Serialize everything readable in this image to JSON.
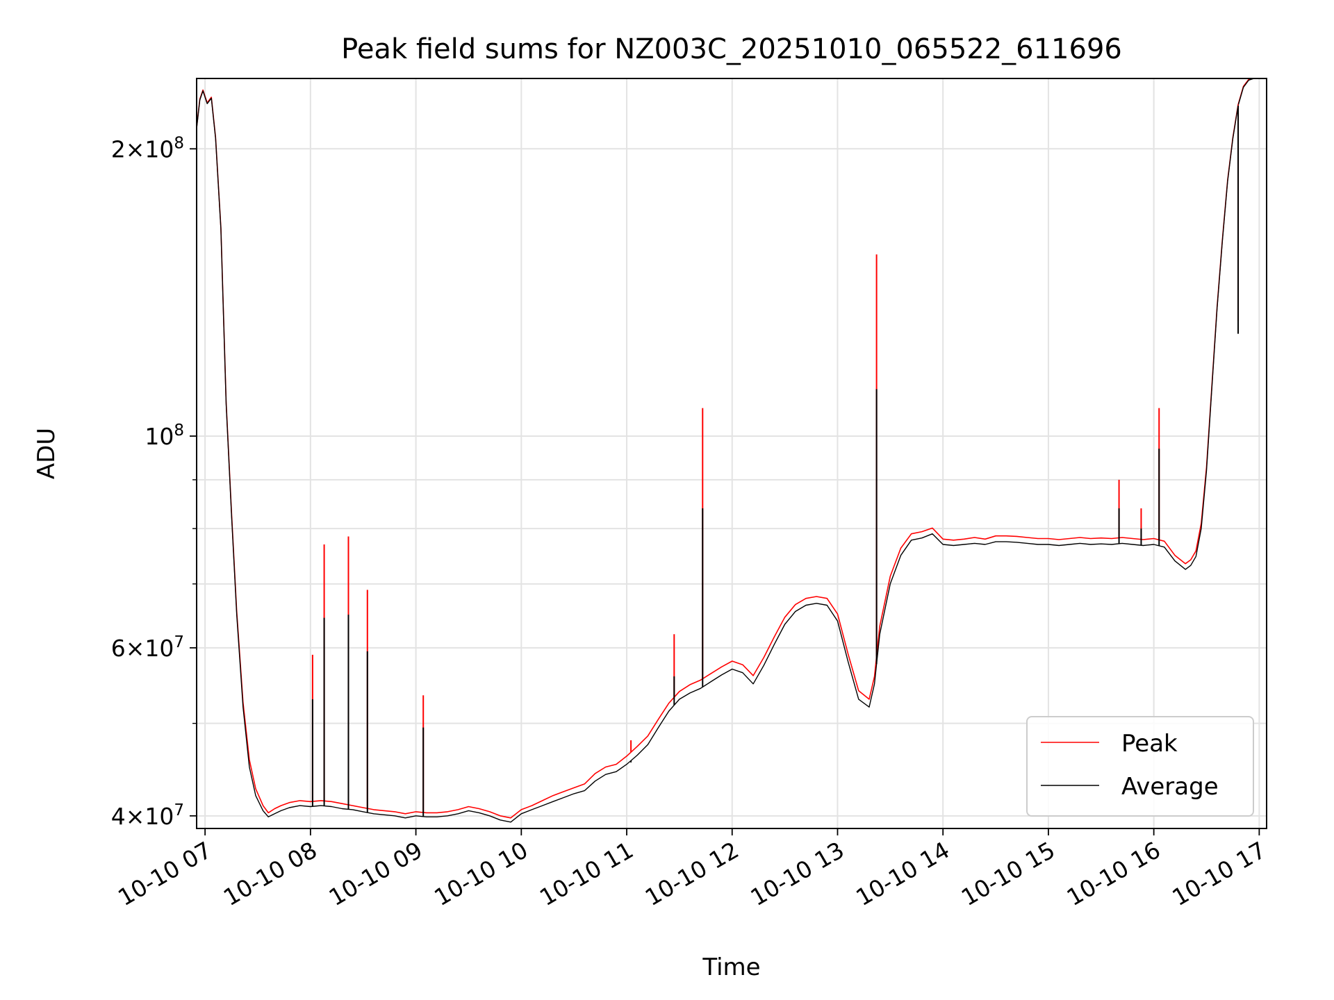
{
  "chart_data": {
    "type": "line",
    "title": "Peak field sums for NZ003C_20251010_065522_611696",
    "xlabel": "Time",
    "ylabel": "ADU",
    "yscale": "log",
    "xlim": [
      6.92,
      17.07
    ],
    "ylim": [
      38800000,
      237000000
    ],
    "grid": true,
    "legend_position": "lower-right",
    "x_unit": "hour of 2025-10-10",
    "x_ticks": [
      {
        "value": 7,
        "label": "10-10 07"
      },
      {
        "value": 8,
        "label": "10-10 08"
      },
      {
        "value": 9,
        "label": "10-10 09"
      },
      {
        "value": 10,
        "label": "10-10 10"
      },
      {
        "value": 11,
        "label": "10-10 11"
      },
      {
        "value": 12,
        "label": "10-10 12"
      },
      {
        "value": 13,
        "label": "10-10 13"
      },
      {
        "value": 14,
        "label": "10-10 14"
      },
      {
        "value": 15,
        "label": "10-10 15"
      },
      {
        "value": 16,
        "label": "10-10 16"
      },
      {
        "value": 17,
        "label": "10-10 17"
      }
    ],
    "y_major_ticks": [
      {
        "value": 40000000,
        "mantissa": "4",
        "times": "×",
        "base": "10",
        "exp": "7"
      },
      {
        "value": 60000000,
        "mantissa": "6",
        "times": "×",
        "base": "10",
        "exp": "7"
      },
      {
        "value": 100000000,
        "mantissa": "",
        "times": "",
        "base": "10",
        "exp": "8"
      },
      {
        "value": 200000000,
        "mantissa": "2",
        "times": "×",
        "base": "10",
        "exp": "8"
      }
    ],
    "y_minor_ticks": [
      50000000,
      70000000,
      80000000,
      90000000
    ],
    "series": [
      {
        "name": "Average",
        "color": "#000000",
        "x": [
          6.92,
          6.95,
          6.98,
          7.02,
          7.06,
          7.1,
          7.15,
          7.2,
          7.25,
          7.3,
          7.36,
          7.42,
          7.48,
          7.55,
          7.6,
          7.66,
          7.72,
          7.8,
          7.9,
          8.0,
          8.1,
          8.2,
          8.3,
          8.4,
          8.5,
          8.6,
          8.7,
          8.8,
          8.9,
          9.0,
          9.1,
          9.2,
          9.3,
          9.4,
          9.5,
          9.6,
          9.7,
          9.8,
          9.9,
          10.0,
          10.1,
          10.2,
          10.3,
          10.4,
          10.5,
          10.6,
          10.7,
          10.8,
          10.9,
          11.0,
          11.1,
          11.2,
          11.3,
          11.4,
          11.5,
          11.6,
          11.7,
          11.8,
          11.9,
          12.0,
          12.1,
          12.2,
          12.3,
          12.4,
          12.5,
          12.6,
          12.7,
          12.8,
          12.9,
          13.0,
          13.1,
          13.2,
          13.3,
          13.35,
          13.4,
          13.5,
          13.6,
          13.7,
          13.8,
          13.9,
          14.0,
          14.1,
          14.2,
          14.3,
          14.4,
          14.5,
          14.6,
          14.7,
          14.8,
          14.9,
          15.0,
          15.1,
          15.2,
          15.3,
          15.4,
          15.5,
          15.6,
          15.7,
          15.8,
          15.9,
          16.0,
          16.1,
          16.2,
          16.3,
          16.35,
          16.4,
          16.45,
          16.5,
          16.55,
          16.6,
          16.65,
          16.7,
          16.75,
          16.8,
          16.85,
          16.9,
          16.95,
          17.0,
          17.04,
          17.07
        ],
        "values": [
          210000000,
          225000000,
          230000000,
          223000000,
          226000000,
          205000000,
          165000000,
          108000000,
          83000000,
          65000000,
          52000000,
          45000000,
          42000000,
          40500000,
          39900000,
          40200000,
          40500000,
          40800000,
          41000000,
          40900000,
          41000000,
          40900000,
          40700000,
          40600000,
          40400000,
          40200000,
          40100000,
          40000000,
          39800000,
          40000000,
          39900000,
          39900000,
          40000000,
          40200000,
          40500000,
          40300000,
          40000000,
          39600000,
          39400000,
          40200000,
          40600000,
          41000000,
          41400000,
          41800000,
          42200000,
          42500000,
          43500000,
          44200000,
          44500000,
          45300000,
          46300000,
          47500000,
          49500000,
          51500000,
          53000000,
          53800000,
          54400000,
          55300000,
          56200000,
          57000000,
          56500000,
          55000000,
          57500000,
          60500000,
          63500000,
          65500000,
          66500000,
          66800000,
          66500000,
          64000000,
          58000000,
          53000000,
          52000000,
          55000000,
          62000000,
          70000000,
          75000000,
          77800000,
          78200000,
          79000000,
          77000000,
          76800000,
          77000000,
          77200000,
          77000000,
          77500000,
          77500000,
          77400000,
          77200000,
          77000000,
          77000000,
          76800000,
          77000000,
          77200000,
          77000000,
          77100000,
          77000000,
          77200000,
          77000000,
          76800000,
          77000000,
          76500000,
          74000000,
          72500000,
          73200000,
          74800000,
          80000000,
          92000000,
          112000000,
          136000000,
          160000000,
          185000000,
          205000000,
          222000000,
          232000000,
          236000000,
          237000000,
          237000000,
          237000000,
          237000000
        ]
      },
      {
        "name": "Peak",
        "color": "#ff0000",
        "x": [
          6.92,
          6.95,
          6.98,
          7.02,
          7.06,
          7.1,
          7.15,
          7.2,
          7.25,
          7.3,
          7.36,
          7.42,
          7.48,
          7.55,
          7.6,
          7.66,
          7.72,
          7.8,
          7.9,
          8.0,
          8.1,
          8.2,
          8.3,
          8.4,
          8.5,
          8.6,
          8.7,
          8.8,
          8.9,
          9.0,
          9.1,
          9.2,
          9.3,
          9.4,
          9.5,
          9.6,
          9.7,
          9.8,
          9.9,
          10.0,
          10.1,
          10.2,
          10.3,
          10.4,
          10.5,
          10.6,
          10.7,
          10.8,
          10.9,
          11.0,
          11.1,
          11.2,
          11.3,
          11.4,
          11.5,
          11.6,
          11.7,
          11.8,
          11.9,
          12.0,
          12.1,
          12.2,
          12.3,
          12.4,
          12.5,
          12.6,
          12.7,
          12.8,
          12.9,
          13.0,
          13.1,
          13.2,
          13.3,
          13.35,
          13.4,
          13.5,
          13.6,
          13.7,
          13.8,
          13.9,
          14.0,
          14.1,
          14.2,
          14.3,
          14.4,
          14.5,
          14.6,
          14.7,
          14.8,
          14.9,
          15.0,
          15.1,
          15.2,
          15.3,
          15.4,
          15.5,
          15.6,
          15.7,
          15.8,
          15.9,
          16.0,
          16.1,
          16.2,
          16.3,
          16.35,
          16.4,
          16.45,
          16.5,
          16.55,
          16.6,
          16.65,
          16.7,
          16.75,
          16.8,
          16.85,
          16.9,
          16.95,
          17.0,
          17.04,
          17.07
        ],
        "values": [
          210500000,
          225500000,
          230500000,
          223500000,
          226500000,
          205500000,
          165500000,
          108500000,
          83500000,
          65500000,
          52600000,
          45800000,
          42700000,
          41000000,
          40300000,
          40700000,
          41000000,
          41300000,
          41500000,
          41400000,
          41500000,
          41400000,
          41200000,
          41000000,
          40800000,
          40600000,
          40500000,
          40400000,
          40200000,
          40400000,
          40300000,
          40300000,
          40400000,
          40600000,
          40900000,
          40700000,
          40400000,
          40000000,
          39800000,
          40600000,
          41000000,
          41500000,
          42000000,
          42400000,
          42800000,
          43200000,
          44300000,
          45000000,
          45300000,
          46200000,
          47300000,
          48500000,
          50500000,
          52500000,
          54000000,
          54900000,
          55500000,
          56400000,
          57300000,
          58100000,
          57600000,
          56100000,
          58600000,
          61600000,
          64600000,
          66600000,
          67600000,
          67900000,
          67600000,
          65100000,
          59100000,
          54100000,
          53000000,
          56000000,
          63200000,
          71300000,
          76300000,
          79000000,
          79400000,
          80100000,
          78000000,
          77800000,
          78000000,
          78300000,
          78000000,
          78600000,
          78600000,
          78500000,
          78300000,
          78100000,
          78100000,
          77900000,
          78100000,
          78300000,
          78100000,
          78200000,
          78100000,
          78300000,
          78100000,
          77900000,
          78100000,
          77600000,
          75000000,
          73500000,
          74200000,
          75800000,
          81000000,
          92800000,
          112600000,
          136500000,
          160500000,
          185500000,
          205500000,
          222500000,
          232500000,
          236500000,
          237000000,
          237000000,
          237000000,
          237000000
        ]
      }
    ],
    "spikes": [
      {
        "x": 8.02,
        "peak": 59000000,
        "average": 53000000
      },
      {
        "x": 8.13,
        "peak": 77000000,
        "average": 64500000
      },
      {
        "x": 8.36,
        "peak": 78500000,
        "average": 65000000
      },
      {
        "x": 8.54,
        "peak": 69000000,
        "average": 59500000
      },
      {
        "x": 9.07,
        "peak": 53500000,
        "average": 49500000
      },
      {
        "x": 11.04,
        "peak": 48000000,
        "average": 45500000
      },
      {
        "x": 11.45,
        "peak": 62000000,
        "average": 56000000
      },
      {
        "x": 11.72,
        "peak": 107000000,
        "average": 84000000
      },
      {
        "x": 13.37,
        "peak": 155000000,
        "average": 112000000
      },
      {
        "x": 15.67,
        "peak": 90000000,
        "average": 84000000
      },
      {
        "x": 15.88,
        "peak": 84000000,
        "average": 80000000
      },
      {
        "x": 16.05,
        "peak": 107000000,
        "average": 97000000
      },
      {
        "x": 16.8,
        "peak": 132000000,
        "average": 128000000
      }
    ]
  }
}
